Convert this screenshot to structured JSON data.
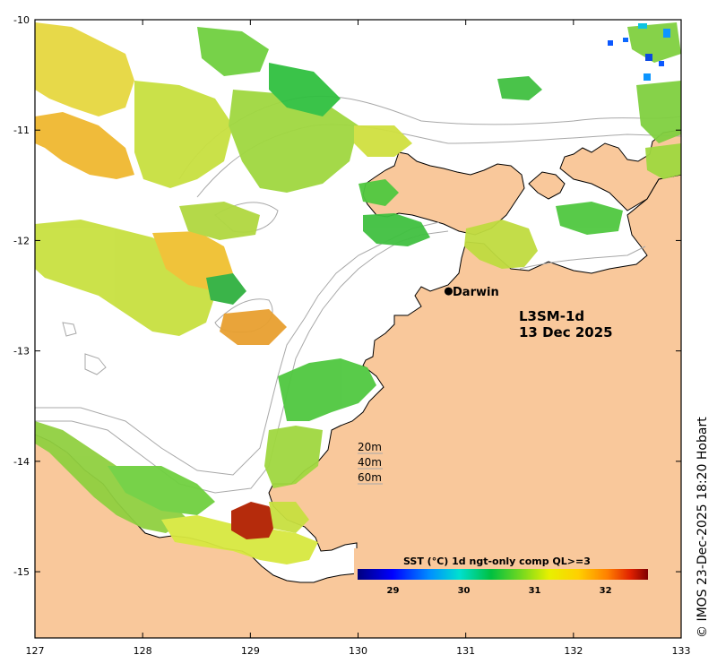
{
  "overlay": {
    "product": "L3SM-1d",
    "date": "13 Dec 2025"
  },
  "city": {
    "name": "Darwin",
    "lon": 130.84,
    "lat": -12.46
  },
  "depth_contours": [
    "20m",
    "40m",
    "60m"
  ],
  "colorbar": {
    "title": "SST (°C) 1d ngt-only comp QL>=3",
    "ticks": [
      "29",
      "30",
      "31",
      "32"
    ],
    "range": [
      28.5,
      32.6
    ]
  },
  "axes": {
    "lon_ticks": [
      "127",
      "128",
      "129",
      "130",
      "131",
      "132",
      "133"
    ],
    "lat_ticks": [
      "-10",
      "-11",
      "-12",
      "-13",
      "-14",
      "-15"
    ],
    "lon_range": [
      127,
      133
    ],
    "lat_range": [
      -15.6,
      -10
    ]
  },
  "credit": "© IMOS 23-Dec-2025 18:20 Hobart",
  "colors": {
    "land": "#f9c89b",
    "ocean": "#ffffff",
    "contour": "#a8a8a8",
    "coast": "#000000"
  }
}
